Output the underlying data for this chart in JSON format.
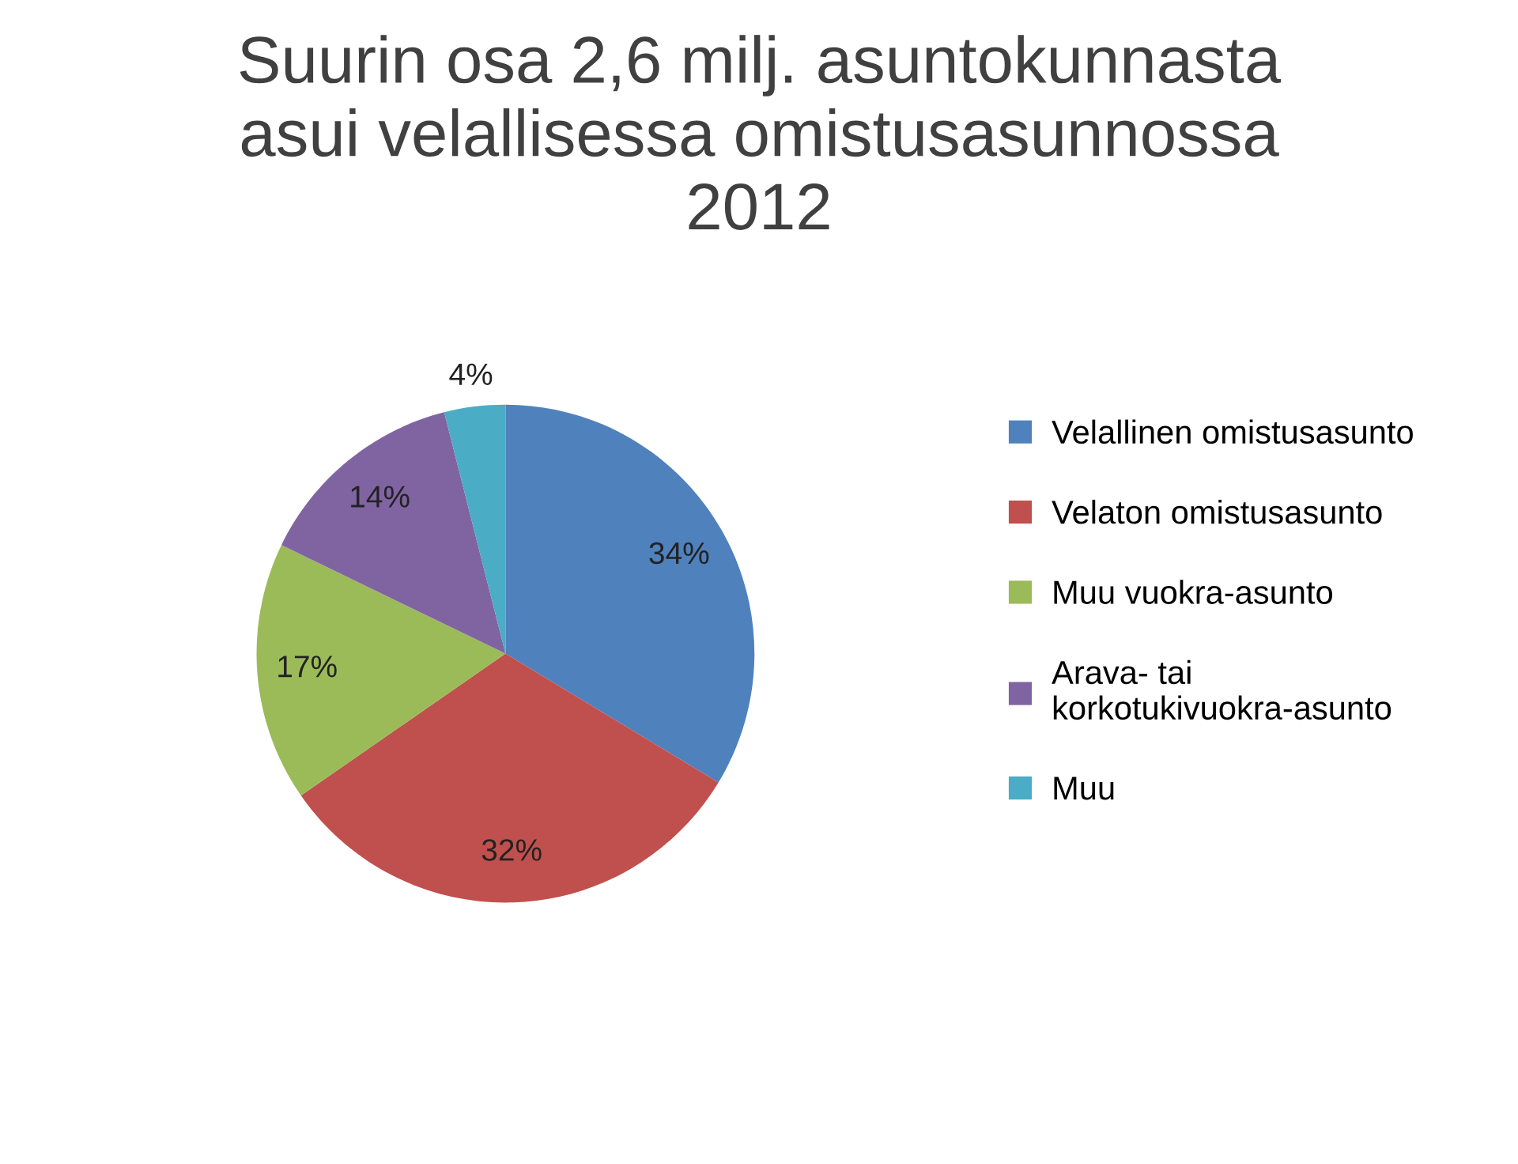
{
  "chart_data": {
    "type": "pie",
    "title": "Suurin osa 2,6 milj. asuntokunnasta\nasui velallisessa omistusasunnossa\n2012",
    "categories": [
      "Velallinen omistusasunto",
      "Velaton omistusasunto",
      "Muu vuokra-asunto",
      "Arava- tai\nkorkotukivuokra-asunto",
      "Muu"
    ],
    "values": [
      34,
      32,
      17,
      14,
      4
    ],
    "value_labels": [
      "34%",
      "32%",
      "17%",
      "14%",
      "4%"
    ],
    "colors": [
      "#4f81bd",
      "#c0504d",
      "#9bbb59",
      "#8064a2",
      "#4bacc6"
    ],
    "legend": "right"
  }
}
